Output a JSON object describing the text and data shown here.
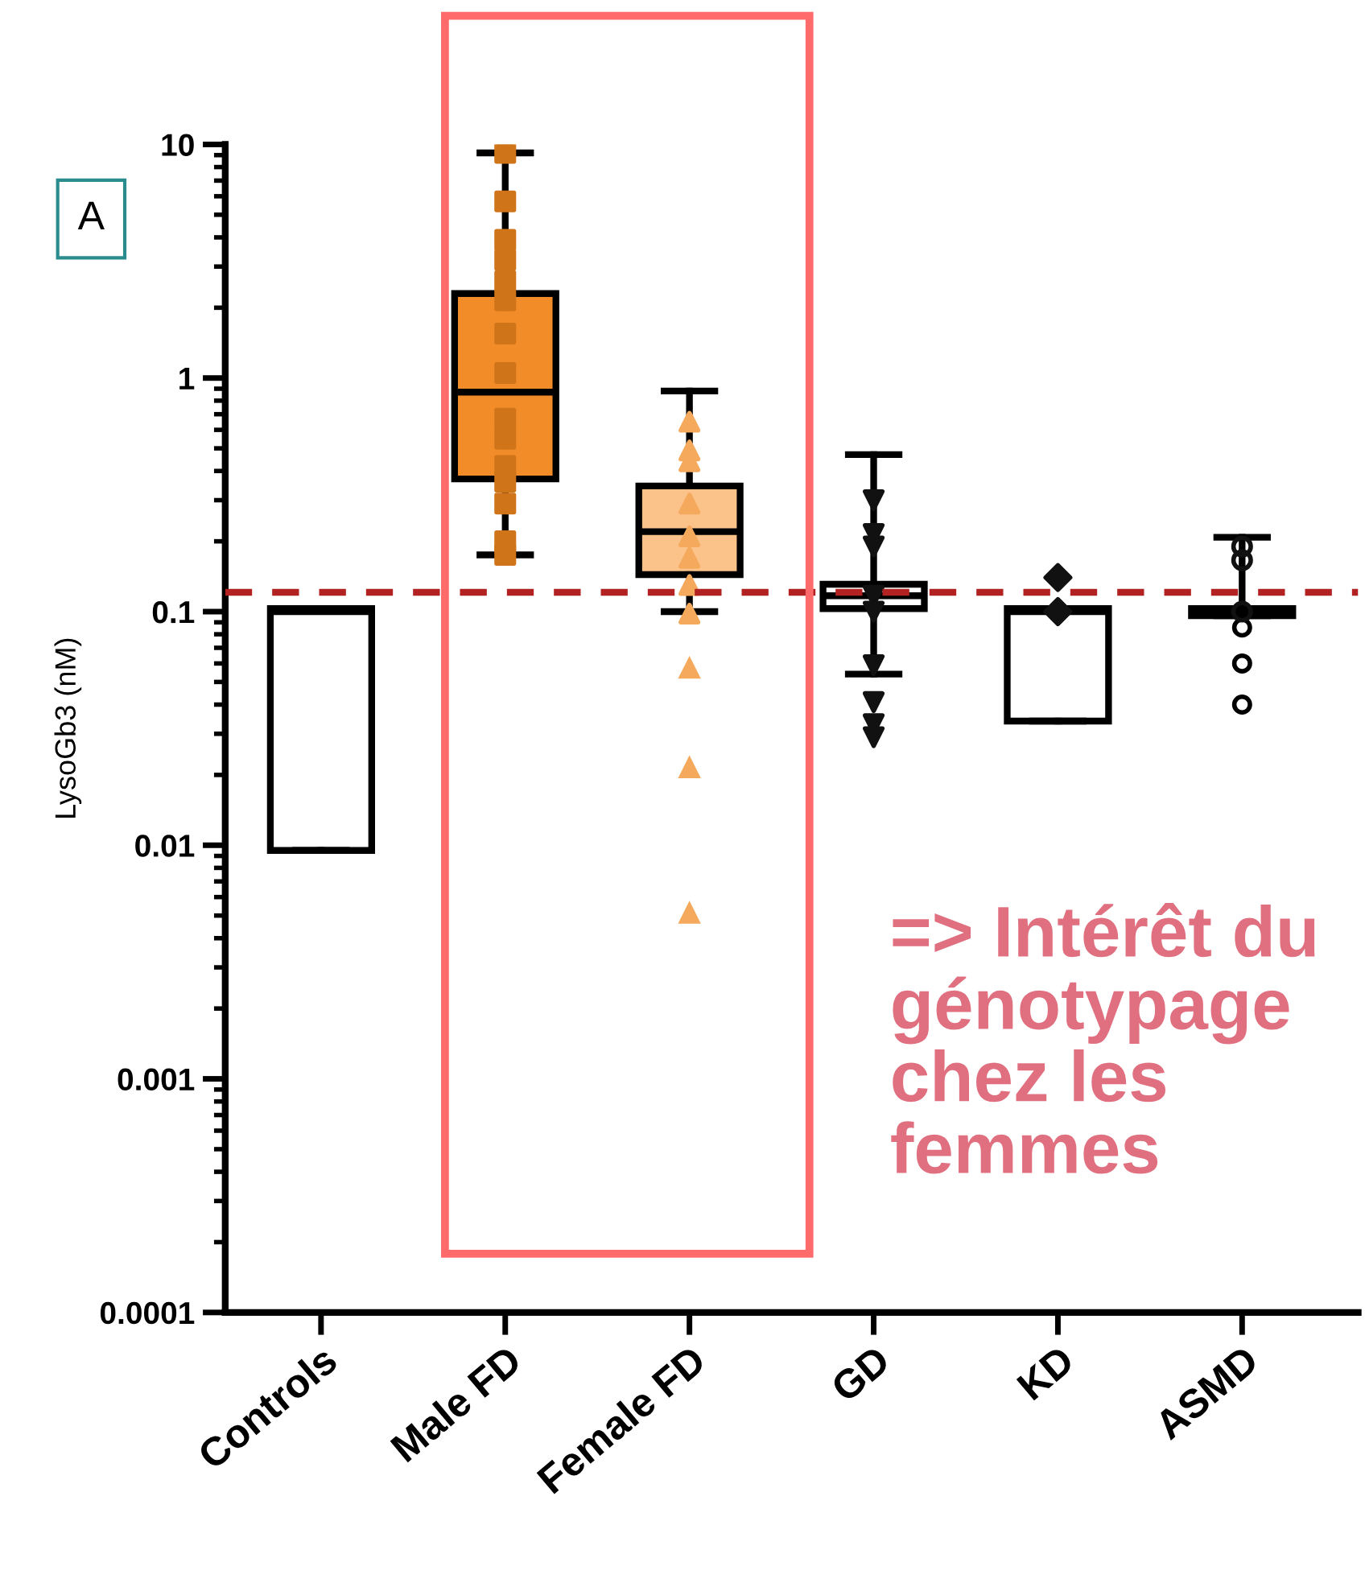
{
  "chart_data": {
    "type": "box",
    "ylabel": "LysoGb3 (nM)",
    "categories": [
      "Controls",
      "Male FD",
      "Female FD",
      "GD",
      "KD",
      "ASMD"
    ],
    "colors": [
      "#ffffff",
      "#f28c28",
      "#fbc28a",
      "#ffffff",
      "#ffffff",
      "#ffffff"
    ],
    "boxes": [
      {
        "low": 0.0095,
        "q1": 0.0095,
        "median": 0.1,
        "q3": 0.103,
        "high": 0.103
      },
      {
        "low": 0.175,
        "q1": 0.37,
        "median": 0.87,
        "q3": 2.3,
        "high": 9.2
      },
      {
        "low": 0.1,
        "q1": 0.144,
        "median": 0.22,
        "q3": 0.345,
        "high": 0.88,
        "outliers": [
          0.057,
          0.0214,
          0.0051
        ]
      },
      {
        "low": 0.054,
        "q1": 0.103,
        "median": 0.117,
        "q3": 0.131,
        "high": 0.47
      },
      {
        "low": 0.034,
        "q1": 0.034,
        "median": 0.1,
        "q3": 0.103,
        "high": 0.103
      },
      {
        "low": 0.096,
        "q1": 0.096,
        "median": 0.1,
        "q3": 0.103,
        "high": 0.208,
        "outliers": [
          0.0855,
          0.06,
          0.04
        ]
      }
    ],
    "series": [
      {
        "type": "scatter",
        "color": "#d0741a",
        "marker": "square",
        "x": [
          "Male FD",
          "Male FD",
          "Male FD",
          "Male FD",
          "Male FD",
          "Male FD",
          "Male FD",
          "Male FD",
          "Male FD",
          "Male FD",
          "Male FD",
          "Male FD",
          "Male FD",
          "Male FD",
          "Male FD"
        ],
        "values": [
          9.2,
          5.7,
          3.9,
          3.2,
          2.6,
          2.15,
          1.55,
          1.05,
          0.67,
          0.55,
          0.42,
          0.36,
          0.29,
          0.2,
          0.175
        ]
      },
      {
        "type": "scatter",
        "color": "#f5a95c",
        "marker": "triangle",
        "x": [
          "Female FD",
          "Female FD",
          "Female FD",
          "Female FD",
          "Female FD",
          "Female FD",
          "Female FD",
          "Female FD"
        ],
        "values": [
          0.65,
          0.49,
          0.44,
          0.29,
          0.21,
          0.17,
          0.13,
          0.098
        ]
      },
      {
        "type": "scatter",
        "color": "#111111",
        "marker": "triangle_down",
        "x": [
          "GD",
          "GD",
          "GD",
          "GD",
          "GD",
          "GD",
          "GD",
          "GD",
          "GD"
        ],
        "values": [
          0.3,
          0.215,
          0.19,
          0.117,
          0.1,
          0.059,
          0.041,
          0.033,
          0.029
        ]
      },
      {
        "type": "scatter",
        "color": "#111111",
        "marker": "diamond",
        "x": [
          "KD",
          "KD"
        ],
        "values": [
          0.14,
          0.1
        ]
      },
      {
        "type": "scatter",
        "color": "#111111",
        "marker": "circle",
        "x": [
          "ASMD",
          "ASMD",
          "ASMD"
        ],
        "values": [
          0.19,
          0.166,
          0.1
        ]
      }
    ],
    "log": true,
    "ylim": [
      0.0001,
      10
    ],
    "yticks": [
      {
        "value": 0.0001,
        "label": "0.0001"
      },
      {
        "value": 0.001,
        "label": "0.001"
      },
      {
        "value": 0.01,
        "label": "0.01"
      },
      {
        "value": 0.1,
        "label": "0.1"
      },
      1,
      10
    ],
    "ref_lines": [
      {
        "axis": "y",
        "value": 0.121,
        "color": "#b22222",
        "line_style": "dashed"
      }
    ],
    "annotations": [
      "A",
      "=> Intérêt du\ngénotypage\nchez les\nfemmes"
    ],
    "grid": false,
    "legend": false
  }
}
